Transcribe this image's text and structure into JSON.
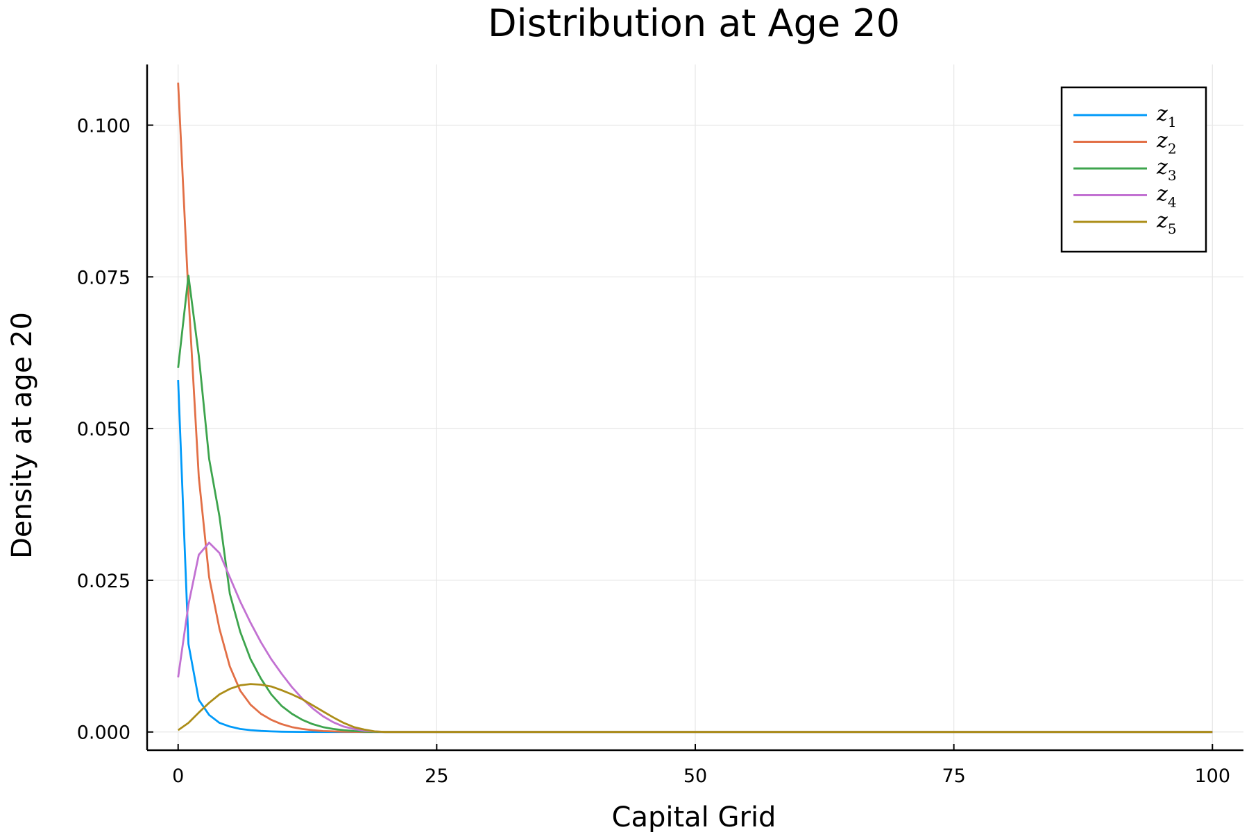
{
  "chart_data": {
    "type": "line",
    "title": "Distribution at Age 20",
    "xlabel": "Capital Grid",
    "ylabel": "Density at age 20",
    "xlim": [
      -3,
      103
    ],
    "ylim": [
      -0.003,
      0.11
    ],
    "xticks": [
      0,
      25,
      50,
      75,
      100
    ],
    "xtick_labels": [
      "0",
      "25",
      "50",
      "75",
      "100"
    ],
    "yticks": [
      0.0,
      0.025,
      0.05,
      0.075,
      0.1
    ],
    "ytick_labels": [
      "0.000",
      "0.025",
      "0.050",
      "0.075",
      "0.100"
    ],
    "grid": true,
    "legend": "top-right",
    "series": [
      {
        "name": "z1",
        "base": "z",
        "sub": "1",
        "color": "#009af9",
        "points": [
          [
            0,
            0.058
          ],
          [
            1,
            0.0145
          ],
          [
            2,
            0.0053
          ],
          [
            3,
            0.0028
          ],
          [
            4,
            0.0015
          ],
          [
            5,
            0.0009
          ],
          [
            6,
            0.0005
          ],
          [
            7,
            0.0003
          ],
          [
            8,
            0.00018
          ],
          [
            9,
            0.0001
          ],
          [
            10,
            5e-05
          ],
          [
            12,
            2e-05
          ],
          [
            15,
            0
          ],
          [
            20,
            0
          ],
          [
            100,
            0
          ]
        ]
      },
      {
        "name": "z2",
        "base": "z",
        "sub": "2",
        "color": "#e26f46",
        "points": [
          [
            0,
            0.107
          ],
          [
            1,
            0.072
          ],
          [
            2,
            0.042
          ],
          [
            3,
            0.0255
          ],
          [
            4,
            0.017
          ],
          [
            5,
            0.0108
          ],
          [
            6,
            0.0068
          ],
          [
            7,
            0.0045
          ],
          [
            8,
            0.003
          ],
          [
            9,
            0.002
          ],
          [
            10,
            0.0013
          ],
          [
            11,
            0.0008
          ],
          [
            12,
            0.0005
          ],
          [
            13,
            0.0003
          ],
          [
            14,
            0.00015
          ],
          [
            16,
            5e-05
          ],
          [
            18,
            0
          ],
          [
            20,
            0
          ],
          [
            100,
            0
          ]
        ]
      },
      {
        "name": "z3",
        "base": "z",
        "sub": "3",
        "color": "#3da44d",
        "points": [
          [
            0,
            0.06
          ],
          [
            1,
            0.0752
          ],
          [
            2,
            0.062
          ],
          [
            3,
            0.045
          ],
          [
            4,
            0.0355
          ],
          [
            5,
            0.0228
          ],
          [
            6,
            0.0165
          ],
          [
            7,
            0.012
          ],
          [
            8,
            0.0088
          ],
          [
            9,
            0.0062
          ],
          [
            10,
            0.0043
          ],
          [
            11,
            0.003
          ],
          [
            12,
            0.002
          ],
          [
            13,
            0.0013
          ],
          [
            14,
            0.0008
          ],
          [
            15,
            0.0005
          ],
          [
            16,
            0.0003
          ],
          [
            17,
            0.00015
          ],
          [
            18,
            6e-05
          ],
          [
            20,
            0
          ],
          [
            100,
            0
          ]
        ]
      },
      {
        "name": "z4",
        "base": "z",
        "sub": "4",
        "color": "#c271d2",
        "points": [
          [
            0,
            0.009
          ],
          [
            1,
            0.021
          ],
          [
            2,
            0.0292
          ],
          [
            3,
            0.0312
          ],
          [
            4,
            0.0295
          ],
          [
            5,
            0.0255
          ],
          [
            6,
            0.0215
          ],
          [
            7,
            0.018
          ],
          [
            8,
            0.0148
          ],
          [
            9,
            0.012
          ],
          [
            10,
            0.0096
          ],
          [
            11,
            0.0074
          ],
          [
            12,
            0.0055
          ],
          [
            13,
            0.0039
          ],
          [
            14,
            0.0026
          ],
          [
            15,
            0.0016
          ],
          [
            16,
            0.0009
          ],
          [
            17,
            0.0005
          ],
          [
            18,
            0.0002
          ],
          [
            19,
            8e-05
          ],
          [
            20,
            0
          ],
          [
            100,
            0
          ]
        ]
      },
      {
        "name": "z5",
        "base": "z",
        "sub": "5",
        "color": "#ac8d18",
        "points": [
          [
            0,
            0.0003
          ],
          [
            1,
            0.0015
          ],
          [
            2,
            0.0032
          ],
          [
            3,
            0.0048
          ],
          [
            4,
            0.0062
          ],
          [
            5,
            0.0071
          ],
          [
            6,
            0.0077
          ],
          [
            7,
            0.0079
          ],
          [
            8,
            0.0078
          ],
          [
            9,
            0.0075
          ],
          [
            10,
            0.0069
          ],
          [
            11,
            0.0062
          ],
          [
            12,
            0.0054
          ],
          [
            13,
            0.0044
          ],
          [
            14,
            0.0034
          ],
          [
            15,
            0.0024
          ],
          [
            16,
            0.0015
          ],
          [
            17,
            0.0008
          ],
          [
            18,
            0.0004
          ],
          [
            19,
            0.0001
          ],
          [
            20,
            0
          ],
          [
            100,
            0
          ]
        ]
      }
    ]
  }
}
